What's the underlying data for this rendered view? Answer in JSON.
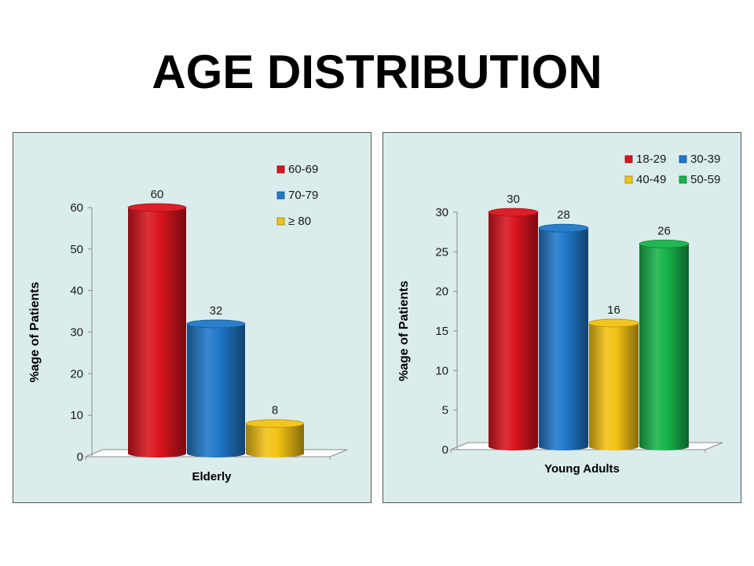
{
  "page": {
    "title": "AGE DISTRIBUTION"
  },
  "chart_data": [
    {
      "type": "bar",
      "categories": [
        "Elderly"
      ],
      "xlabel": "Elderly",
      "ylabel": "%age of Patients",
      "ylim": [
        0,
        60
      ],
      "yticks": [
        0,
        10,
        20,
        30,
        40,
        50,
        60
      ],
      "grid": false,
      "legend_position": "top-right",
      "data_labels": true,
      "series": [
        {
          "name": "60-69",
          "values": [
            60
          ],
          "color": "#d9141e"
        },
        {
          "name": "70-79",
          "values": [
            32
          ],
          "color": "#1f78c8"
        },
        {
          "name": "≥ 80",
          "values": [
            8
          ],
          "color": "#f2c214"
        }
      ]
    },
    {
      "type": "bar",
      "categories": [
        "Young Adults"
      ],
      "xlabel": "Young Adults",
      "ylabel": "%age of Patients",
      "ylim": [
        0,
        30
      ],
      "yticks": [
        0,
        5,
        10,
        15,
        20,
        25,
        30
      ],
      "grid": false,
      "legend_position": "top-right",
      "data_labels": true,
      "series": [
        {
          "name": "18-29",
          "values": [
            30
          ],
          "color": "#d9141e"
        },
        {
          "name": "30-39",
          "values": [
            28
          ],
          "color": "#1f78c8"
        },
        {
          "name": "40-49",
          "values": [
            16
          ],
          "color": "#f2c214"
        },
        {
          "name": "50-59",
          "values": [
            26
          ],
          "color": "#17b34a"
        }
      ]
    }
  ]
}
